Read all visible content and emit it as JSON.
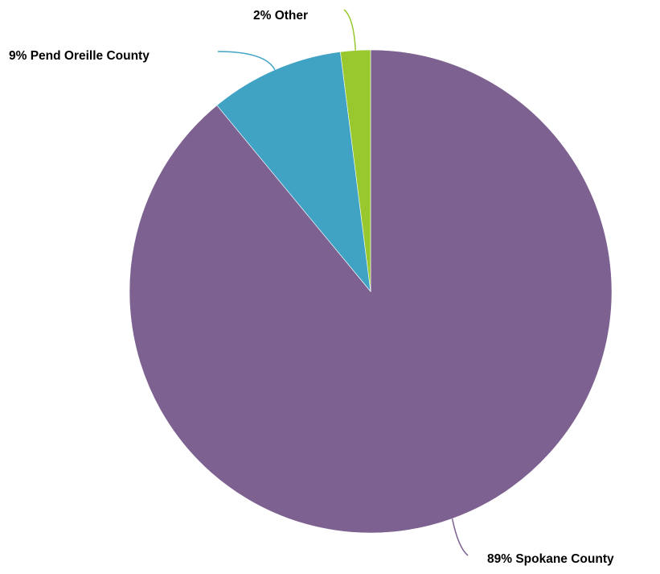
{
  "chart_data": {
    "type": "pie",
    "slices": [
      {
        "name": "Spokane County",
        "value": 89,
        "label": "89% Spokane County",
        "color": "#7d6190"
      },
      {
        "name": "Pend Oreille County",
        "value": 9,
        "label": "9% Pend Oreille County",
        "color": "#40a3c4"
      },
      {
        "name": "Other",
        "value": 2,
        "label": "2% Other",
        "color": "#98c82d"
      }
    ],
    "start": "12 o'clock",
    "direction": "clockwise",
    "legend": "none"
  }
}
